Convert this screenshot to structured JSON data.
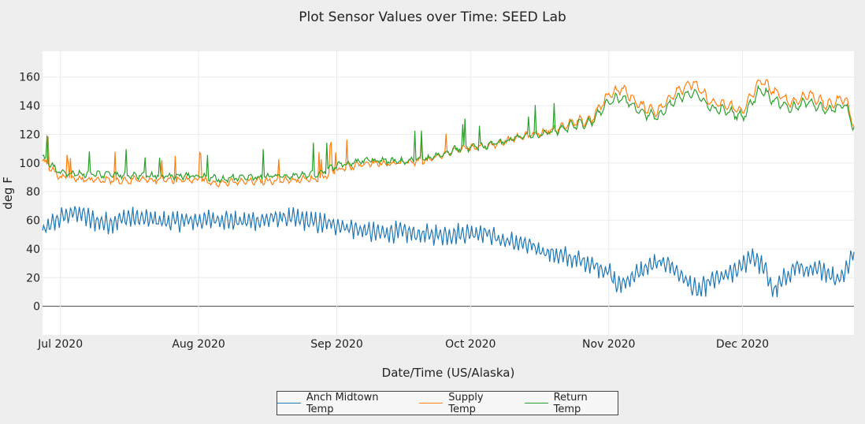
{
  "chart_data": {
    "type": "line",
    "title": "Plot Sensor Values over Time: SEED Lab",
    "xlabel": "Date/Time (US/Alaska)",
    "ylabel": "deg F",
    "xlim": [
      "2020-06-27",
      "2020-12-26"
    ],
    "ylim": [
      -20,
      178
    ],
    "yticks": [
      0,
      20,
      40,
      60,
      80,
      100,
      120,
      140,
      160
    ],
    "xticks": [
      {
        "date": "2020-07-01",
        "label": "Jul 2020"
      },
      {
        "date": "2020-08-01",
        "label": "Aug 2020"
      },
      {
        "date": "2020-09-01",
        "label": "Sep 2020"
      },
      {
        "date": "2020-10-01",
        "label": "Oct 2020"
      },
      {
        "date": "2020-11-01",
        "label": "Nov 2020"
      },
      {
        "date": "2020-12-01",
        "label": "Dec 2020"
      }
    ],
    "grid": true,
    "legend_position": "bottom-center",
    "series": [
      {
        "name": "Anch Midtown Temp",
        "color": "#1f77b4",
        "points": [
          [
            "2020-06-27",
            52
          ],
          [
            "2020-07-01",
            62
          ],
          [
            "2020-07-05",
            66
          ],
          [
            "2020-07-08",
            60
          ],
          [
            "2020-07-12",
            58
          ],
          [
            "2020-07-16",
            62
          ],
          [
            "2020-07-20",
            61
          ],
          [
            "2020-07-25",
            59
          ],
          [
            "2020-08-01",
            60
          ],
          [
            "2020-08-06",
            61
          ],
          [
            "2020-08-10",
            59
          ],
          [
            "2020-08-15",
            60
          ],
          [
            "2020-08-20",
            62
          ],
          [
            "2020-08-25",
            60
          ],
          [
            "2020-08-28",
            58
          ],
          [
            "2020-09-01",
            57
          ],
          [
            "2020-09-05",
            54
          ],
          [
            "2020-09-10",
            51
          ],
          [
            "2020-09-15",
            52
          ],
          [
            "2020-09-20",
            50
          ],
          [
            "2020-09-25",
            50
          ],
          [
            "2020-09-30",
            51
          ],
          [
            "2020-10-04",
            52
          ],
          [
            "2020-10-08",
            46
          ],
          [
            "2020-10-12",
            44
          ],
          [
            "2020-10-16",
            40
          ],
          [
            "2020-10-20",
            36
          ],
          [
            "2020-10-24",
            33
          ],
          [
            "2020-10-28",
            30
          ],
          [
            "2020-11-01",
            24
          ],
          [
            "2020-11-03",
            14
          ],
          [
            "2020-11-06",
            20
          ],
          [
            "2020-11-10",
            28
          ],
          [
            "2020-11-14",
            31
          ],
          [
            "2020-11-17",
            22
          ],
          [
            "2020-11-21",
            10
          ],
          [
            "2020-11-24",
            18
          ],
          [
            "2020-11-28",
            22
          ],
          [
            "2020-12-01",
            28
          ],
          [
            "2020-12-03",
            36
          ],
          [
            "2020-12-06",
            26
          ],
          [
            "2020-12-08",
            10
          ],
          [
            "2020-12-10",
            18
          ],
          [
            "2020-12-13",
            28
          ],
          [
            "2020-12-16",
            24
          ],
          [
            "2020-12-19",
            26
          ],
          [
            "2020-12-22",
            19
          ],
          [
            "2020-12-24",
            24
          ],
          [
            "2020-12-26",
            39
          ]
        ]
      },
      {
        "name": "Supply Temp",
        "color": "#ff7f0e",
        "points": [
          [
            "2020-06-27",
            102
          ],
          [
            "2020-07-01",
            90
          ],
          [
            "2020-07-10",
            88
          ],
          [
            "2020-07-20",
            88
          ],
          [
            "2020-08-01",
            88
          ],
          [
            "2020-08-06",
            86
          ],
          [
            "2020-08-12",
            87
          ],
          [
            "2020-08-20",
            88
          ],
          [
            "2020-08-28",
            89
          ],
          [
            "2020-09-01",
            95
          ],
          [
            "2020-09-08",
            100
          ],
          [
            "2020-09-15",
            100
          ],
          [
            "2020-09-22",
            102
          ],
          [
            "2020-09-28",
            110
          ],
          [
            "2020-10-05",
            112
          ],
          [
            "2020-10-12",
            118
          ],
          [
            "2020-10-18",
            122
          ],
          [
            "2020-10-24",
            128
          ],
          [
            "2020-10-28",
            130
          ],
          [
            "2020-11-01",
            148
          ],
          [
            "2020-11-04",
            152
          ],
          [
            "2020-11-08",
            140
          ],
          [
            "2020-11-12",
            136
          ],
          [
            "2020-11-16",
            150
          ],
          [
            "2020-11-20",
            156
          ],
          [
            "2020-11-24",
            142
          ],
          [
            "2020-11-28",
            140
          ],
          [
            "2020-12-01",
            136
          ],
          [
            "2020-12-05",
            158
          ],
          [
            "2020-12-08",
            150
          ],
          [
            "2020-12-12",
            142
          ],
          [
            "2020-12-16",
            148
          ],
          [
            "2020-12-20",
            140
          ],
          [
            "2020-12-24",
            146
          ],
          [
            "2020-12-26",
            126
          ]
        ]
      },
      {
        "name": "Return Temp",
        "color": "#2ca02c",
        "points": [
          [
            "2020-06-27",
            104
          ],
          [
            "2020-07-01",
            93
          ],
          [
            "2020-07-10",
            92
          ],
          [
            "2020-07-20",
            91
          ],
          [
            "2020-08-01",
            91
          ],
          [
            "2020-08-06",
            89
          ],
          [
            "2020-08-12",
            90
          ],
          [
            "2020-08-20",
            91
          ],
          [
            "2020-08-28",
            92
          ],
          [
            "2020-09-01",
            98
          ],
          [
            "2020-09-08",
            102
          ],
          [
            "2020-09-15",
            101
          ],
          [
            "2020-09-22",
            103
          ],
          [
            "2020-09-28",
            110
          ],
          [
            "2020-10-05",
            112
          ],
          [
            "2020-10-12",
            118
          ],
          [
            "2020-10-18",
            121
          ],
          [
            "2020-10-24",
            126
          ],
          [
            "2020-10-28",
            128
          ],
          [
            "2020-11-01",
            143
          ],
          [
            "2020-11-04",
            146
          ],
          [
            "2020-11-08",
            136
          ],
          [
            "2020-11-12",
            132
          ],
          [
            "2020-11-16",
            144
          ],
          [
            "2020-11-20",
            150
          ],
          [
            "2020-11-24",
            138
          ],
          [
            "2020-11-28",
            136
          ],
          [
            "2020-12-01",
            132
          ],
          [
            "2020-12-05",
            152
          ],
          [
            "2020-12-08",
            144
          ],
          [
            "2020-12-12",
            138
          ],
          [
            "2020-12-16",
            143
          ],
          [
            "2020-12-20",
            136
          ],
          [
            "2020-12-24",
            141
          ],
          [
            "2020-12-26",
            124
          ]
        ]
      }
    ]
  }
}
